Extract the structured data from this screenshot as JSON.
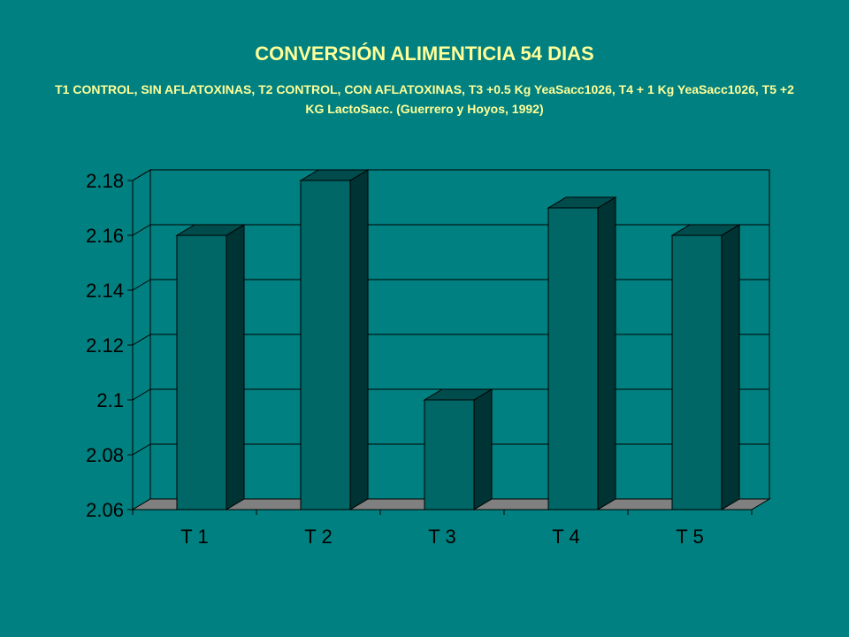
{
  "slide": {
    "title": "CONVERSIÓN ALIMENTICIA 54 DIAS",
    "subtitle": "T1 CONTROL, SIN AFLATOXINAS, T2 CONTROL, CON AFLATOXINAS, T3 +0.5 Kg YeaSacc1026, T4 + 1 Kg YeaSacc1026, T5 +2 KG LactoSacc. (Guerrero y Hoyos, 1992)"
  },
  "colors": {
    "background": "#008080",
    "bar_front": "#006666",
    "bar_side": "#003333",
    "bar_top": "#004C4C",
    "floor": "#808080",
    "title": "#FFFF99"
  },
  "chart_data": {
    "type": "bar",
    "title": "CONVERSIÓN ALIMENTICIA 54 DIAS",
    "subtitle": "T1 CONTROL, SIN AFLATOXINAS, T2 CONTROL, CON AFLATOXINAS, T3 +0.5 Kg YeaSacc1026, T4 + 1 Kg YeaSacc1026, T5 +2 KG LactoSacc. (Guerrero y Hoyos, 1992)",
    "categories": [
      "T 1",
      "T 2",
      "T 3",
      "T 4",
      "T 5"
    ],
    "values": [
      2.16,
      2.18,
      2.1,
      2.17,
      2.16
    ],
    "ylim": [
      2.06,
      2.18
    ],
    "yticks": [
      2.06,
      2.08,
      2.1,
      2.12,
      2.14,
      2.16,
      2.18
    ],
    "ytick_labels": [
      "2.06",
      "2.08",
      "2.1",
      "2.12",
      "2.14",
      "2.16",
      "2.18"
    ],
    "xlabel": "",
    "ylabel": "",
    "grid": true,
    "style": "3d-column"
  }
}
